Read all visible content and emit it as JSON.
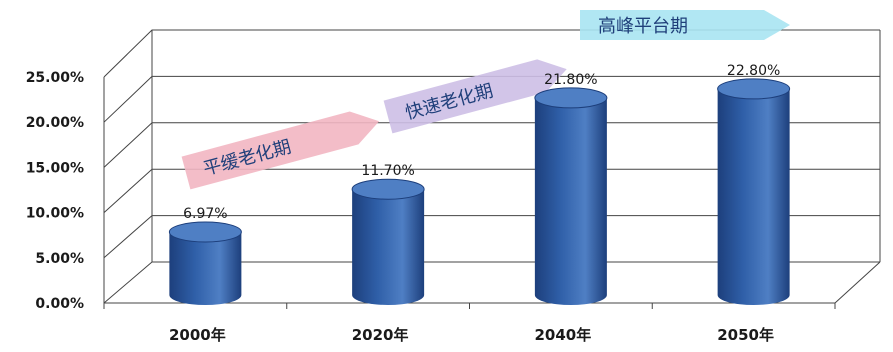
{
  "chart_data": {
    "type": "bar",
    "style": "3d-cylinder",
    "categories": [
      "2000年",
      "2020年",
      "2040年",
      "2050年"
    ],
    "values": [
      6.97,
      11.7,
      21.8,
      22.8
    ],
    "data_labels": [
      "6.97%",
      "11.70%",
      "21.80%",
      "22.80%"
    ],
    "y_ticks": [
      "0.00%",
      "5.00%",
      "10.00%",
      "15.00%",
      "20.00%",
      "25.00%"
    ],
    "ylim": [
      0,
      25
    ],
    "grid": true,
    "colors": {
      "bar": "#2f5fa8",
      "bar_dark": "#1d3f7c",
      "bar_top": "#4f7fc4",
      "grid": "#444444"
    },
    "annotations": [
      {
        "text": "平缓老化期",
        "color": "#f2b6c2"
      },
      {
        "text": "快速老化期",
        "color": "#cdbfe6"
      },
      {
        "text": "高峰平台期",
        "color": "#a9e4f2"
      }
    ]
  }
}
